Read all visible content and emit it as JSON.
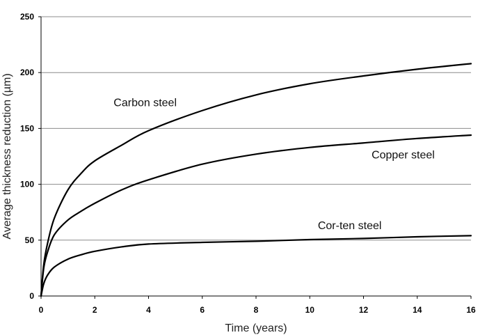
{
  "chart_data": {
    "type": "line",
    "title": "",
    "xlabel": "Time (years)",
    "ylabel": "Average thickness reduction (µm)",
    "xlim": [
      0,
      16
    ],
    "ylim": [
      0,
      250
    ],
    "x_ticks": [
      0,
      2,
      4,
      6,
      8,
      10,
      12,
      14,
      16
    ],
    "y_ticks": [
      0,
      50,
      100,
      150,
      200,
      250
    ],
    "grid": "horizontal",
    "legend": "none",
    "series": [
      {
        "name": "Carbon steel",
        "x": [
          0,
          0.1,
          0.25,
          0.5,
          1,
          1.5,
          2,
          3,
          4,
          6,
          8,
          10,
          12,
          14,
          16
        ],
        "values": [
          0,
          28,
          48,
          70,
          95,
          110,
          121,
          135,
          148,
          166,
          180,
          190,
          197,
          203,
          208
        ]
      },
      {
        "name": "Copper steel",
        "x": [
          0,
          0.1,
          0.25,
          0.5,
          1,
          1.5,
          2,
          3,
          4,
          6,
          8,
          10,
          12,
          14,
          16
        ],
        "values": [
          0,
          25,
          40,
          55,
          68,
          76,
          83,
          95,
          104,
          118,
          127,
          133,
          137,
          141,
          144
        ]
      },
      {
        "name": "Cor-ten steel",
        "x": [
          0,
          0.1,
          0.25,
          0.5,
          1,
          1.5,
          2,
          3,
          4,
          6,
          8,
          10,
          12,
          14,
          16
        ],
        "values": [
          0,
          11,
          19,
          26,
          33,
          37,
          40,
          44,
          46.5,
          48,
          49,
          50.5,
          51.5,
          53,
          54
        ]
      }
    ]
  }
}
